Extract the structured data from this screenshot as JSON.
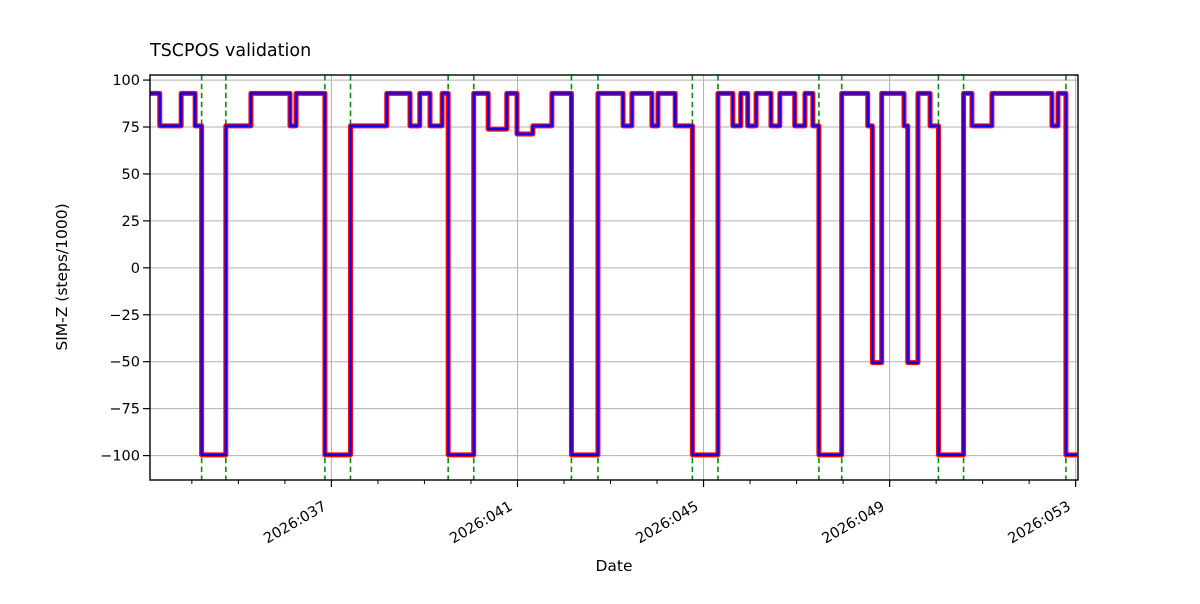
{
  "figure": {
    "title": "TSCPOS validation",
    "xlabel": "Date",
    "ylabel": "SIM-Z (steps/1000)"
  },
  "chart_data": {
    "type": "line",
    "step_mode": "post",
    "title": "TSCPOS validation",
    "xlabel": "Date",
    "ylabel": "SIM-Z (steps/1000)",
    "x_unit": "2026 day-of-year",
    "grid": true,
    "xlim": [
      33.1,
      53.05
    ],
    "ylim": [
      -113,
      102.7
    ],
    "x_major_ticks": [
      {
        "day": 37,
        "label": "2026:037"
      },
      {
        "day": 41,
        "label": "2026:041"
      },
      {
        "day": 45,
        "label": "2026:045"
      },
      {
        "day": 49,
        "label": "2026:049"
      },
      {
        "day": 53,
        "label": "2026:053"
      }
    ],
    "x_minor_tick_step": 1,
    "y_ticks": [
      {
        "v": 100,
        "label": "100"
      },
      {
        "v": 75,
        "label": "75"
      },
      {
        "v": 50,
        "label": "50"
      },
      {
        "v": 25,
        "label": "25"
      },
      {
        "v": 0,
        "label": "0"
      },
      {
        "v": -25,
        "label": "−25"
      },
      {
        "v": -50,
        "label": "−50"
      },
      {
        "v": -75,
        "label": "−75"
      },
      {
        "v": -100,
        "label": "−100"
      }
    ],
    "steps": [
      [
        33.1,
        92.9
      ],
      [
        33.31,
        75.6
      ],
      [
        33.77,
        92.9
      ],
      [
        34.07,
        75.6
      ],
      [
        34.21,
        -99.6
      ],
      [
        34.73,
        75.6
      ],
      [
        35.27,
        92.9
      ],
      [
        36.11,
        75.6
      ],
      [
        36.24,
        92.9
      ],
      [
        36.86,
        -99.6
      ],
      [
        37.41,
        75.6
      ],
      [
        38.19,
        92.9
      ],
      [
        38.69,
        75.6
      ],
      [
        38.9,
        92.9
      ],
      [
        39.12,
        75.6
      ],
      [
        39.38,
        92.9
      ],
      [
        39.51,
        -99.6
      ],
      [
        40.06,
        92.9
      ],
      [
        40.37,
        73.9
      ],
      [
        40.77,
        92.9
      ],
      [
        40.99,
        71.3
      ],
      [
        41.33,
        75.6
      ],
      [
        41.74,
        92.9
      ],
      [
        42.16,
        -99.6
      ],
      [
        42.73,
        92.9
      ],
      [
        43.27,
        75.6
      ],
      [
        43.46,
        92.9
      ],
      [
        43.89,
        75.6
      ],
      [
        44.02,
        92.9
      ],
      [
        44.39,
        75.6
      ],
      [
        44.76,
        -99.6
      ],
      [
        45.31,
        92.9
      ],
      [
        45.63,
        75.6
      ],
      [
        45.8,
        92.9
      ],
      [
        45.95,
        75.6
      ],
      [
        46.13,
        92.9
      ],
      [
        46.45,
        75.6
      ],
      [
        46.64,
        92.9
      ],
      [
        46.96,
        75.6
      ],
      [
        47.18,
        92.9
      ],
      [
        47.35,
        75.6
      ],
      [
        47.48,
        -99.6
      ],
      [
        47.97,
        92.9
      ],
      [
        48.53,
        75.6
      ],
      [
        48.63,
        -50.5
      ],
      [
        48.83,
        92.9
      ],
      [
        49.31,
        75.6
      ],
      [
        49.39,
        -50.5
      ],
      [
        49.61,
        92.9
      ],
      [
        49.87,
        75.6
      ],
      [
        50.05,
        -99.6
      ],
      [
        50.59,
        92.9
      ],
      [
        50.77,
        75.6
      ],
      [
        51.2,
        92.9
      ],
      [
        52.49,
        75.6
      ],
      [
        52.62,
        92.9
      ],
      [
        52.79,
        -99.6
      ]
    ],
    "x_end": 53.03,
    "line_styles": [
      {
        "name": "reference-line",
        "color": "#ff0000",
        "width": 5
      },
      {
        "name": "telemetry-line",
        "color": "#0000ff",
        "width": 2.4
      }
    ],
    "event_lines": {
      "color": "#0a8a0a",
      "style": "dashed",
      "days": [
        34.21,
        34.73,
        36.86,
        37.41,
        39.51,
        40.06,
        42.16,
        42.73,
        44.76,
        45.31,
        47.48,
        47.97,
        50.05,
        50.59,
        52.79
      ]
    },
    "grid_color": "#b0b0b0"
  }
}
